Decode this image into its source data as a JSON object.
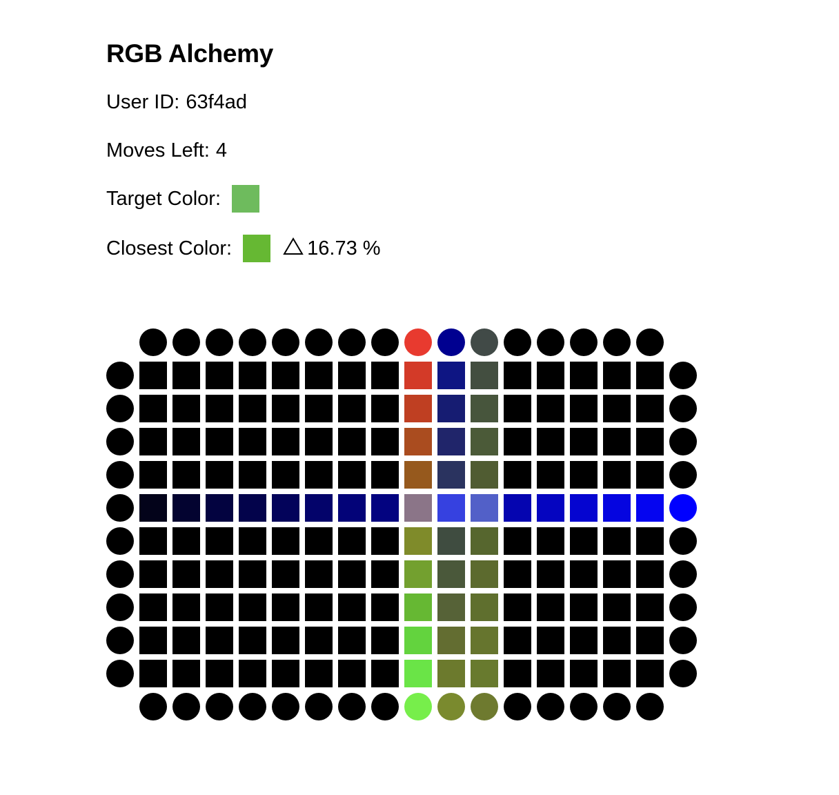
{
  "game": {
    "title": "RGB Alchemy",
    "user_id_label": "User ID:",
    "user_id": "63f4ad",
    "moves_left_label": "Moves Left:",
    "moves_left": "4",
    "target_label": "Target Color:",
    "target_color": "#6ebb5d",
    "closest_label": "Closest Color:",
    "closest_color": "#66b833",
    "delta_icon": "triangle-delta-icon",
    "delta_text": "16.73 %"
  },
  "board": {
    "width": 16,
    "height": 10,
    "default_color": "#000000",
    "sources_top": [
      "#000000",
      "#000000",
      "#000000",
      "#000000",
      "#000000",
      "#000000",
      "#000000",
      "#000000",
      "#e83a2f",
      "#000090",
      "#414a47",
      "#000000",
      "#000000",
      "#000000",
      "#000000",
      "#000000"
    ],
    "sources_bottom": [
      "#000000",
      "#000000",
      "#000000",
      "#000000",
      "#000000",
      "#000000",
      "#000000",
      "#000000",
      "#77ee4b",
      "#7a8a2e",
      "#6e7a2f",
      "#000000",
      "#000000",
      "#000000",
      "#000000",
      "#000000"
    ],
    "sources_left": [
      "#000000",
      "#000000",
      "#000000",
      "#000000",
      "#000000",
      "#000000",
      "#000000",
      "#000000",
      "#000000",
      "#000000"
    ],
    "sources_right": [
      "#000000",
      "#000000",
      "#000000",
      "#000000",
      "#0000ff",
      "#000000",
      "#000000",
      "#000000",
      "#000000",
      "#000000"
    ],
    "tile_rows": [
      [
        "#000000",
        "#000000",
        "#000000",
        "#000000",
        "#000000",
        "#000000",
        "#000000",
        "#000000",
        "#d33a28",
        "#0e1583",
        "#434e40",
        "#000000",
        "#000000",
        "#000000",
        "#000000",
        "#000000"
      ],
      [
        "#000000",
        "#000000",
        "#000000",
        "#000000",
        "#000000",
        "#000000",
        "#000000",
        "#000000",
        "#bf3f22",
        "#161c72",
        "#47553c",
        "#000000",
        "#000000",
        "#000000",
        "#000000",
        "#000000"
      ],
      [
        "#000000",
        "#000000",
        "#000000",
        "#000000",
        "#000000",
        "#000000",
        "#000000",
        "#000000",
        "#aa4c1f",
        "#20256a",
        "#4b5a38",
        "#000000",
        "#000000",
        "#000000",
        "#000000",
        "#000000"
      ],
      [
        "#000000",
        "#000000",
        "#000000",
        "#000000",
        "#000000",
        "#000000",
        "#000000",
        "#000000",
        "#96591d",
        "#2a335f",
        "#505c32",
        "#000000",
        "#000000",
        "#000000",
        "#000000",
        "#000000"
      ],
      [
        "#03031a",
        "#030330",
        "#030340",
        "#03034b",
        "#03035a",
        "#03036a",
        "#030378",
        "#030380",
        "#8b7588",
        "#3641e0",
        "#5260c8",
        "#0505b0",
        "#0505c0",
        "#0505d0",
        "#0505e0",
        "#0505f0"
      ],
      [
        "#000000",
        "#000000",
        "#000000",
        "#000000",
        "#000000",
        "#000000",
        "#000000",
        "#000000",
        "#7f8b2a",
        "#3f4c40",
        "#56662e",
        "#000000",
        "#000000",
        "#000000",
        "#000000",
        "#000000"
      ],
      [
        "#000000",
        "#000000",
        "#000000",
        "#000000",
        "#000000",
        "#000000",
        "#000000",
        "#000000",
        "#73a02f",
        "#4a583a",
        "#5c6a2e",
        "#000000",
        "#000000",
        "#000000",
        "#000000",
        "#000000"
      ],
      [
        "#000000",
        "#000000",
        "#000000",
        "#000000",
        "#000000",
        "#000000",
        "#000000",
        "#000000",
        "#66b833",
        "#566237",
        "#5f6f2e",
        "#000000",
        "#000000",
        "#000000",
        "#000000",
        "#000000"
      ],
      [
        "#000000",
        "#000000",
        "#000000",
        "#000000",
        "#000000",
        "#000000",
        "#000000",
        "#000000",
        "#63d33e",
        "#636d31",
        "#66752e",
        "#000000",
        "#000000",
        "#000000",
        "#000000",
        "#000000"
      ],
      [
        "#000000",
        "#000000",
        "#000000",
        "#000000",
        "#000000",
        "#000000",
        "#000000",
        "#000000",
        "#6ae447",
        "#6c7a2d",
        "#687a2e",
        "#000000",
        "#000000",
        "#000000",
        "#000000",
        "#000000"
      ]
    ]
  }
}
